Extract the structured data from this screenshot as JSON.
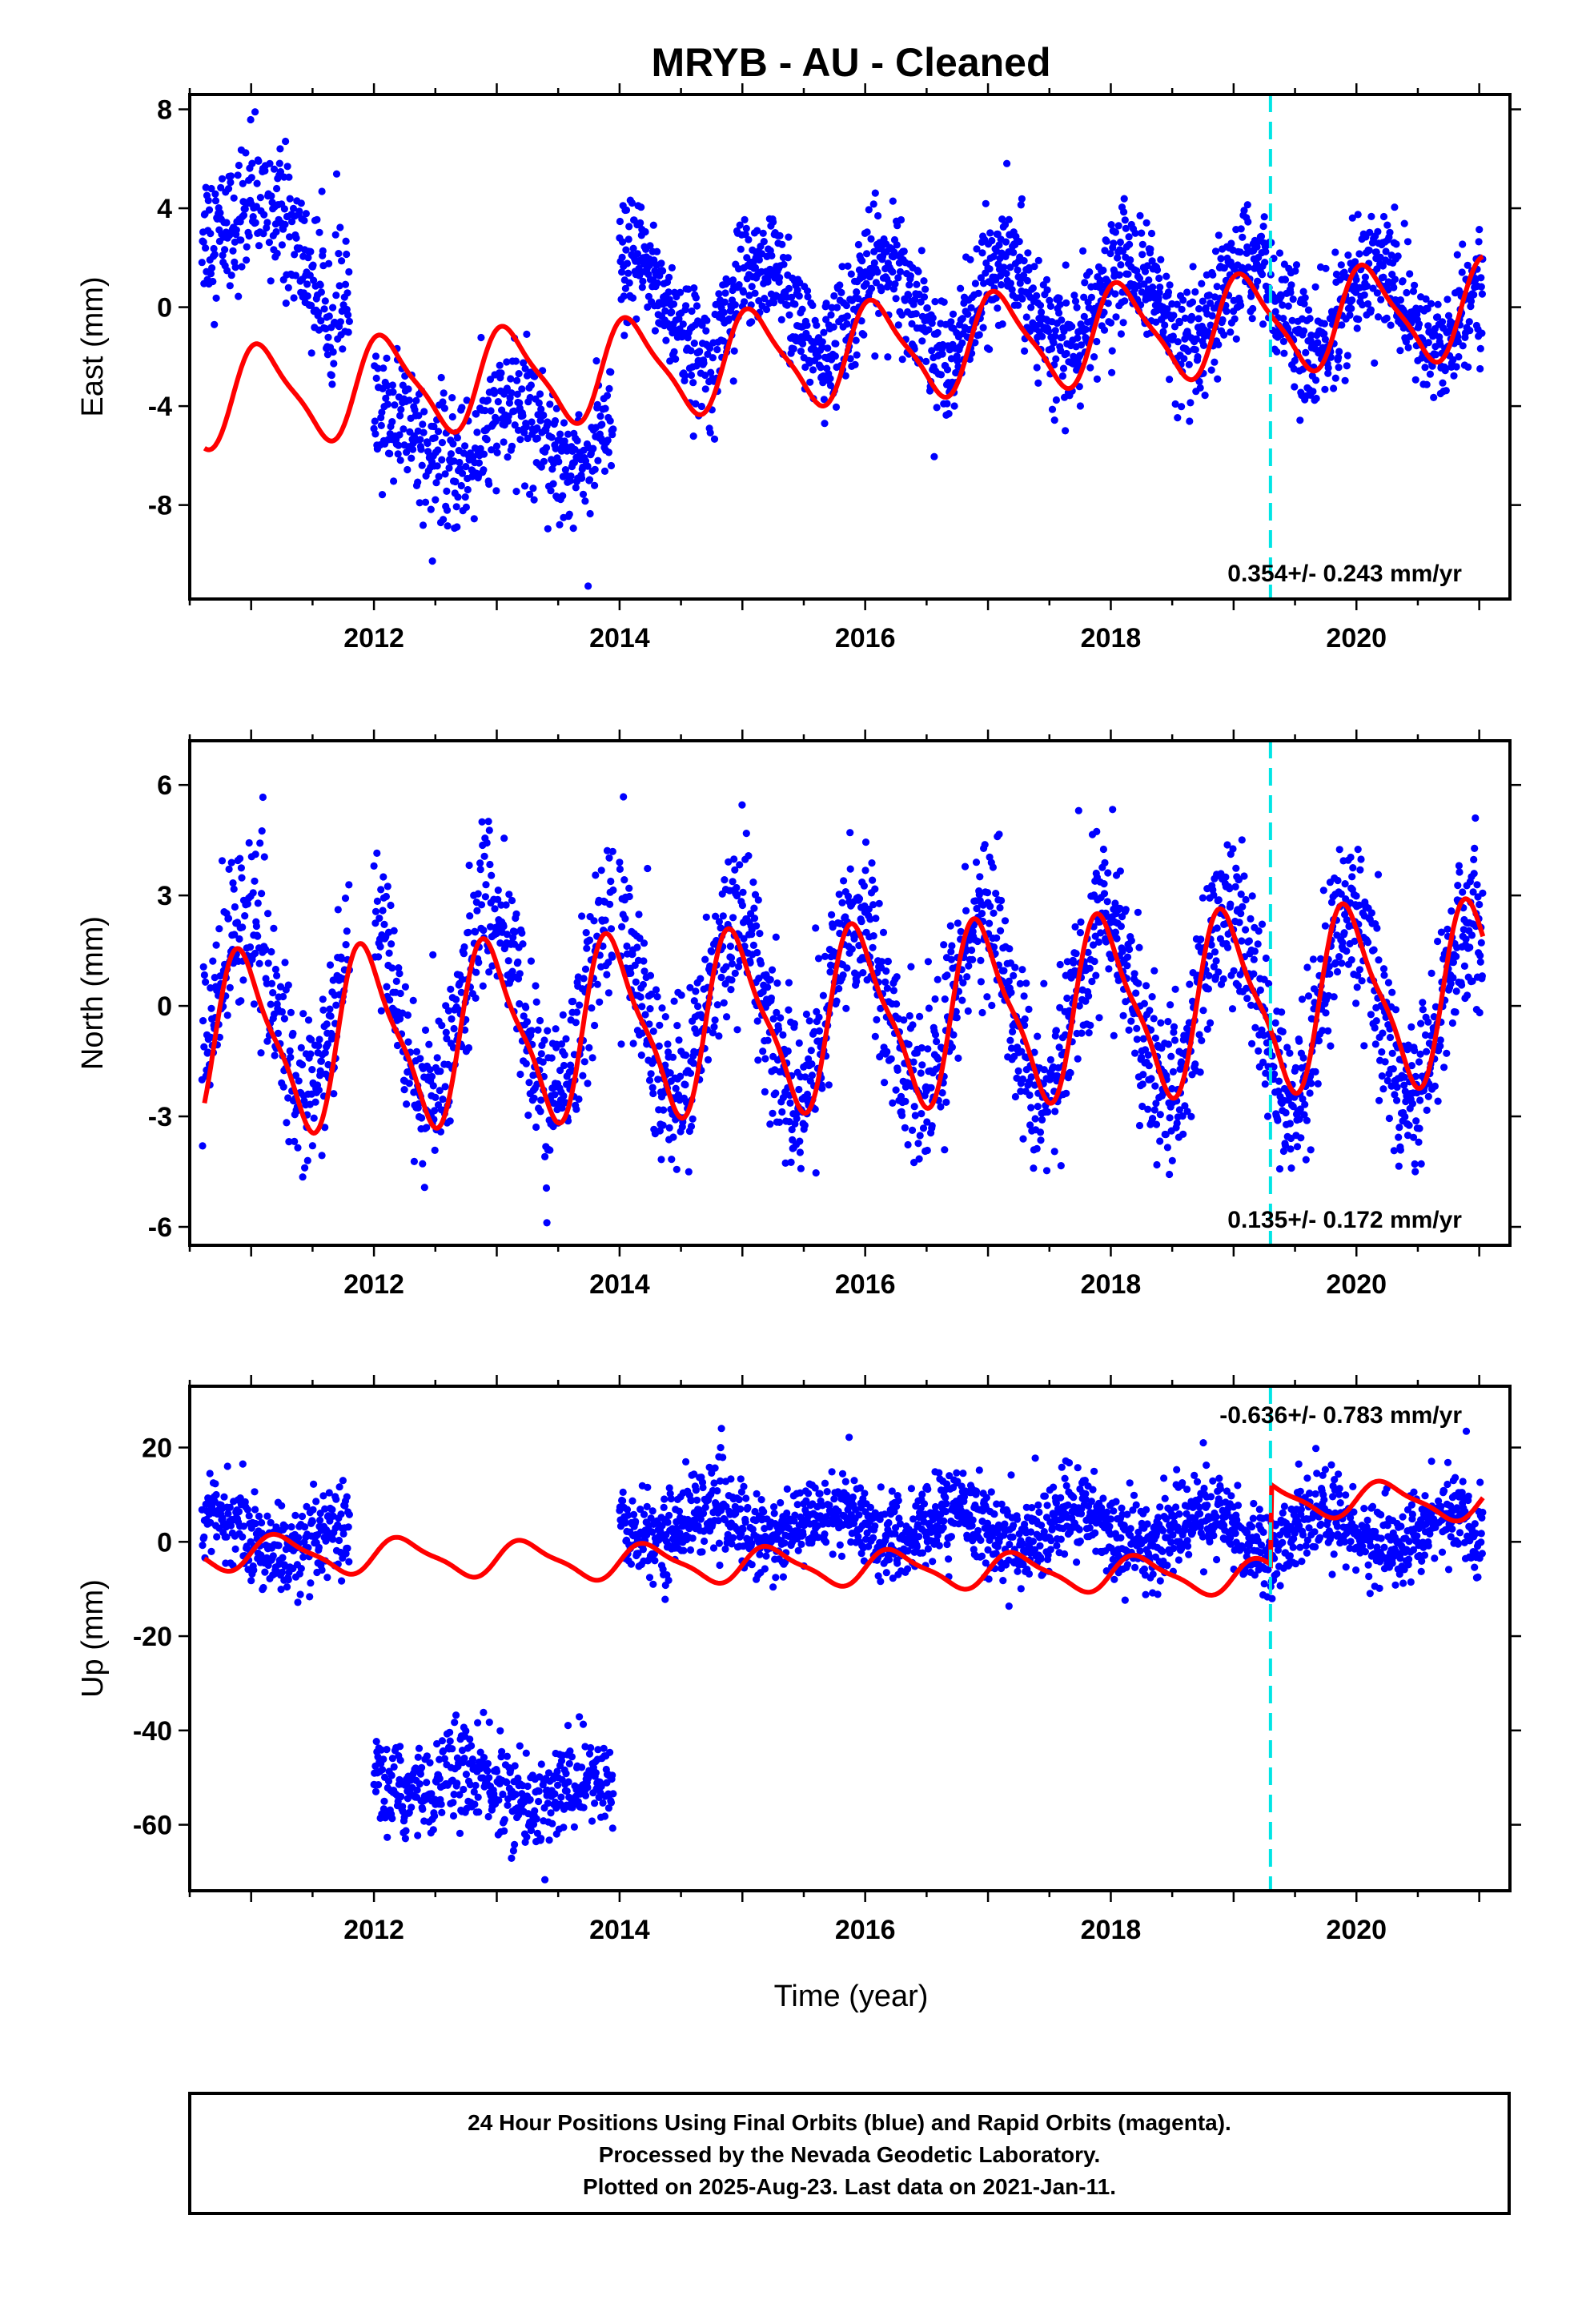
{
  "title": "MRYB  - AU - Cleaned",
  "xlabel": "Time (year)",
  "footer": [
    "24 Hour Positions Using Final Orbits (blue) and Rapid Orbits (magenta).",
    "Processed by the Nevada Geodetic Laboratory.",
    "Plotted on 2025-Aug-23. Last data on 2021-Jan-11."
  ],
  "colors": {
    "final_orbits": "#0000ff",
    "model_fit": "#ff0000",
    "equipment_change": "#00e5e5",
    "frame": "#000000"
  },
  "chart_data": [
    {
      "type": "scatter",
      "name": "east",
      "ylabel": "East (mm)",
      "rate_label": "0.354+/- 0.243 mm/yr",
      "xlim": [
        2010.5,
        2021.25
      ],
      "ylim": [
        -11.8,
        8.6
      ],
      "xticks": [
        2012,
        2014,
        2016,
        2018,
        2020
      ],
      "yticks": [
        -8,
        -4,
        0,
        4,
        8
      ],
      "equipment_change_x": 2019.3,
      "observed_series": [
        {
          "start": 2010.6,
          "end": 2011.8,
          "start_mean": 4.5,
          "end_mean": 1.0,
          "noise": 1.4,
          "amp": 1.3,
          "step": 0.004
        },
        {
          "start": 2012.0,
          "end": 2013.95,
          "start_mean": -5.5,
          "end_mean": -5.0,
          "noise": 1.3,
          "amp": 1.2,
          "step": 0.004
        },
        {
          "start": 2014.0,
          "end": 2021.03,
          "start_mean": 0.0,
          "end_mean": 0.0,
          "noise": 1.2,
          "amp": 1.8,
          "step": 0.0035
        }
      ],
      "model_fit": {
        "x0": 2010.62,
        "x1": 2021.03,
        "offset": -1.8,
        "rate": 0.354,
        "annual_amp": 1.9,
        "semiannual_amp": 0.45,
        "phase": 0.15,
        "step_at": 2019.3,
        "step": 0.0
      }
    },
    {
      "type": "scatter",
      "name": "north",
      "ylabel": "North (mm)",
      "rate_label": "0.135+/- 0.172 mm/yr",
      "xlim": [
        2010.5,
        2021.25
      ],
      "ylim": [
        -6.5,
        7.2
      ],
      "xticks": [
        2012,
        2014,
        2016,
        2018,
        2020
      ],
      "yticks": [
        -6,
        -3,
        0,
        3,
        6
      ],
      "equipment_change_x": 2019.3,
      "observed_series": [
        {
          "start": 2010.6,
          "end": 2011.8,
          "start_mean": 0.0,
          "end_mean": 0.0,
          "noise": 1.1,
          "amp": 2.4,
          "step": 0.004
        },
        {
          "start": 2012.0,
          "end": 2013.95,
          "start_mean": 0.0,
          "end_mean": 0.0,
          "noise": 1.1,
          "amp": 2.6,
          "step": 0.004
        },
        {
          "start": 2014.0,
          "end": 2021.03,
          "start_mean": 0.0,
          "end_mean": 0.0,
          "noise": 1.1,
          "amp": 2.5,
          "step": 0.0035
        }
      ],
      "model_fit": {
        "x0": 2010.62,
        "x1": 2021.03,
        "offset": -0.3,
        "rate": 0.135,
        "annual_amp": 2.3,
        "semiannual_amp": 0.6,
        "phase": 0.3,
        "step_at": 2019.3,
        "step": 0.0
      }
    },
    {
      "type": "scatter",
      "name": "up",
      "ylabel": "Up (mm)",
      "rate_label": "-0.636+/- 0.783 mm/yr",
      "xlim": [
        2010.5,
        2021.25
      ],
      "ylim": [
        -74,
        33
      ],
      "xticks": [
        2012,
        2014,
        2016,
        2018,
        2020
      ],
      "yticks": [
        -60,
        -40,
        -20,
        0,
        20
      ],
      "equipment_change_x": 2019.3,
      "observed_series": [
        {
          "start": 2010.6,
          "end": 2011.8,
          "start_mean": 3.0,
          "end_mean": -2.0,
          "noise": 4.5,
          "amp": 3.0,
          "step": 0.004
        },
        {
          "start": 2012.0,
          "end": 2013.95,
          "start_mean": -50.0,
          "end_mean": -54.0,
          "noise": 5.0,
          "amp": 3.0,
          "step": 0.004
        },
        {
          "start": 2014.0,
          "end": 2021.03,
          "start_mean": 4.0,
          "end_mean": 2.0,
          "noise": 4.5,
          "amp": 3.5,
          "step": 0.0035
        }
      ],
      "model_fit": {
        "x0": 2010.62,
        "x1": 2021.03,
        "offset": -5.5,
        "rate": -0.636,
        "annual_amp": 3.6,
        "semiannual_amp": 1.0,
        "phase": 0.0,
        "step_at": 2019.3,
        "step": 17.0
      }
    }
  ]
}
